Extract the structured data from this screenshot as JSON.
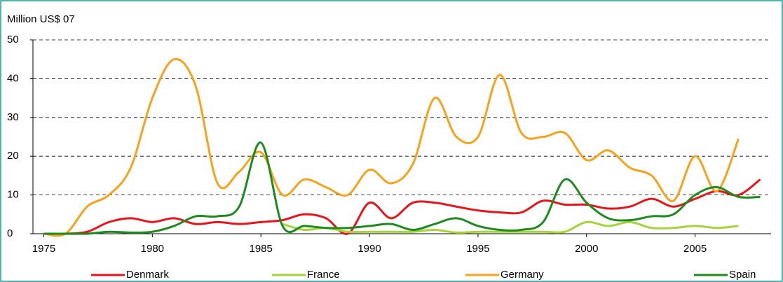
{
  "chart_data": {
    "type": "line",
    "y_label": "Million US$ 07",
    "x": [
      1975,
      1976,
      1977,
      1978,
      1979,
      1980,
      1981,
      1982,
      1983,
      1984,
      1985,
      1986,
      1987,
      1988,
      1989,
      1990,
      1991,
      1992,
      1993,
      1994,
      1995,
      1996,
      1997,
      1998,
      1999,
      2000,
      2001,
      2002,
      2003,
      2004,
      2005,
      2006,
      2007,
      2008
    ],
    "xlim": [
      1974.5,
      2008.5
    ],
    "xticks": [
      1975,
      1980,
      1985,
      1990,
      1995,
      2000,
      2005
    ],
    "ylim": [
      0,
      50
    ],
    "yticks": [
      0,
      10,
      20,
      30,
      40,
      50
    ],
    "grid": true,
    "legend": "bottom",
    "series": [
      {
        "name": "Denmark",
        "color": "#e8141b",
        "values": [
          0,
          0,
          0.5,
          3,
          4,
          3,
          4,
          2.5,
          3,
          2.5,
          3,
          3.5,
          5,
          4,
          0,
          8,
          4,
          8,
          8,
          7,
          6,
          5.5,
          5.5,
          8.5,
          7.5,
          7.5,
          6.5,
          7,
          9,
          7,
          9,
          11,
          10,
          14
        ]
      },
      {
        "name": "France",
        "color": "#a6d23a",
        "values": [
          null,
          null,
          null,
          null,
          null,
          null,
          null,
          null,
          null,
          null,
          null,
          2.5,
          1,
          1.5,
          0.5,
          0.5,
          0.5,
          0.5,
          1,
          0.3,
          0.5,
          0.5,
          0.5,
          0.5,
          0.5,
          3,
          2,
          3,
          1.5,
          1.5,
          2,
          1.5,
          2,
          null
        ]
      },
      {
        "name": "Germany",
        "color": "#f7a21b",
        "values": [
          0,
          0,
          7,
          10,
          17,
          35,
          45,
          38,
          13,
          16,
          21,
          10,
          14,
          12,
          10,
          16.5,
          13,
          18,
          35,
          25,
          25,
          41,
          26,
          25,
          26,
          19,
          21.5,
          17,
          15,
          8.5,
          20,
          11,
          24.5,
          null
        ]
      },
      {
        "name": "Spain",
        "color": "#1d8a1d",
        "values": [
          0,
          0,
          0,
          0.5,
          0.3,
          0.5,
          2,
          4.5,
          4.5,
          7,
          23.5,
          2,
          2,
          1.5,
          1.5,
          2,
          2.5,
          1,
          2.5,
          4,
          2,
          1,
          1,
          3,
          14,
          8,
          4,
          3.5,
          4.5,
          5,
          10,
          12,
          9.5,
          9.5
        ]
      }
    ]
  }
}
